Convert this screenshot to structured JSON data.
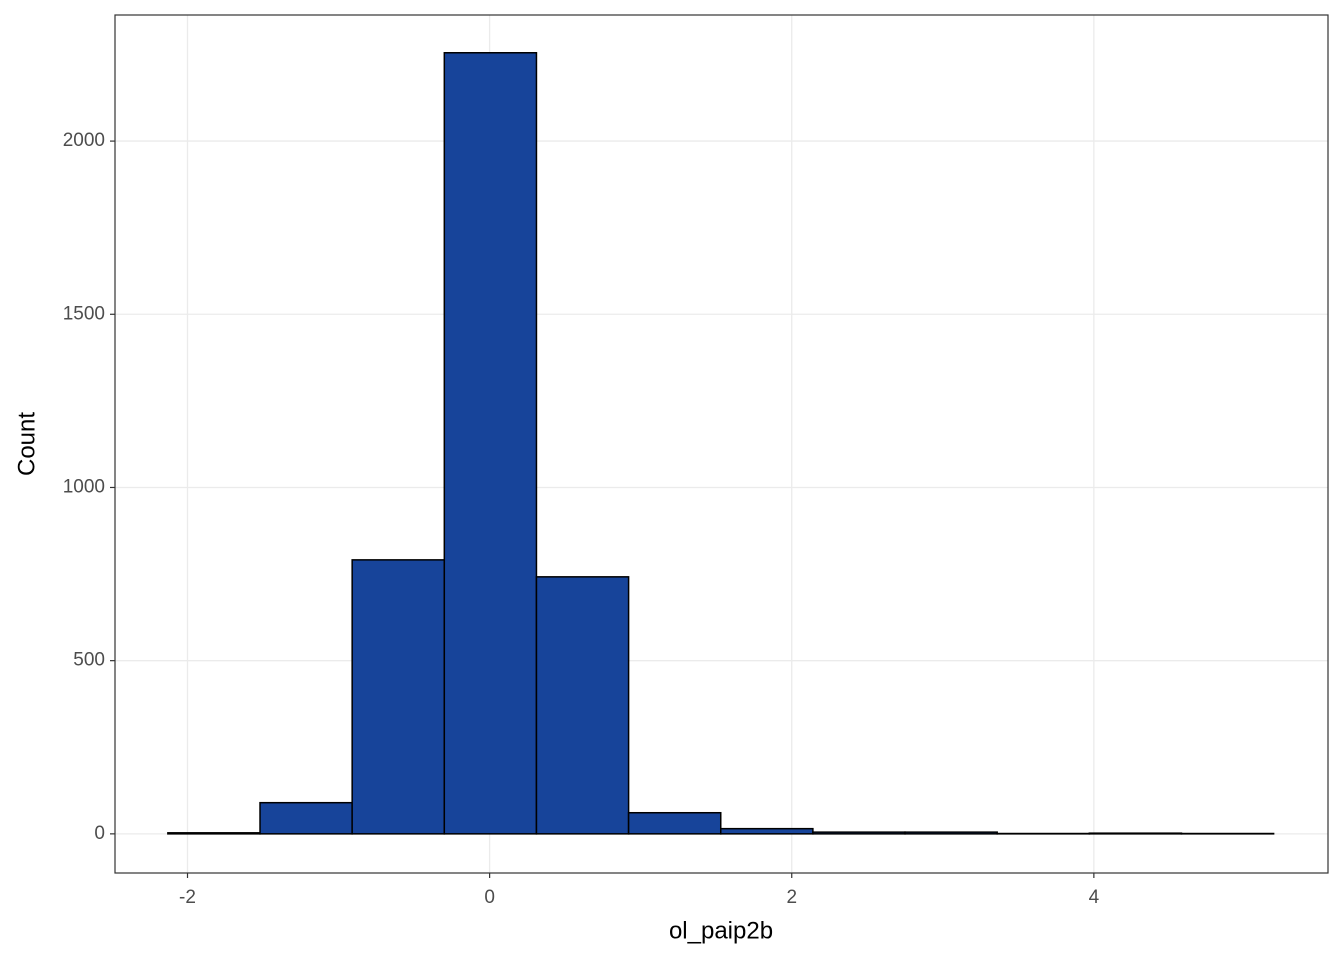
{
  "chart_data": {
    "type": "histogram",
    "x_label": "ol_paip2b",
    "y_label": "Count",
    "bins": [
      -2.13,
      -1.52,
      -0.91,
      -0.3,
      0.31,
      0.92,
      1.53,
      2.14,
      2.75,
      3.36,
      3.97,
      4.58,
      5.19
    ],
    "values": [
      3,
      90,
      791,
      2255,
      742,
      61,
      15,
      5,
      5,
      1,
      2,
      1
    ],
    "color": "#17449a",
    "xlim": [
      -2.48,
      5.55
    ],
    "xticks": [
      -2,
      0,
      2,
      4
    ],
    "ylim": [
      -113,
      2364
    ],
    "yticks": [
      0,
      500,
      1000,
      1500,
      2000
    ],
    "grid": true
  }
}
